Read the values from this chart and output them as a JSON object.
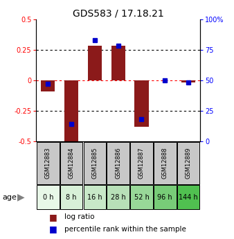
{
  "title": "GDS583 / 17.18.21",
  "samples": [
    "GSM12883",
    "GSM12884",
    "GSM12885",
    "GSM12886",
    "GSM12887",
    "GSM12888",
    "GSM12889"
  ],
  "ages": [
    "0 h",
    "8 h",
    "16 h",
    "28 h",
    "52 h",
    "96 h",
    "144 h"
  ],
  "log_ratio": [
    -0.09,
    -0.52,
    0.28,
    0.28,
    -0.38,
    0.0,
    -0.02
  ],
  "percentile_rank": [
    47,
    14,
    83,
    78,
    18,
    50,
    48
  ],
  "age_colors": [
    "#e8f8e8",
    "#d8f0d8",
    "#c8e8c8",
    "#b8e0b8",
    "#98d898",
    "#78cc78",
    "#50c050"
  ],
  "sample_box_color": "#c8c8c8",
  "bar_color": "#8b1a1a",
  "point_color": "#0000cc",
  "ylim_left": [
    -0.5,
    0.5
  ],
  "ylim_right": [
    0,
    100
  ],
  "yticks_left": [
    -0.5,
    -0.25,
    0,
    0.25,
    0.5
  ],
  "yticks_right": [
    0,
    25,
    50,
    75,
    100
  ],
  "background_color": "#ffffff"
}
